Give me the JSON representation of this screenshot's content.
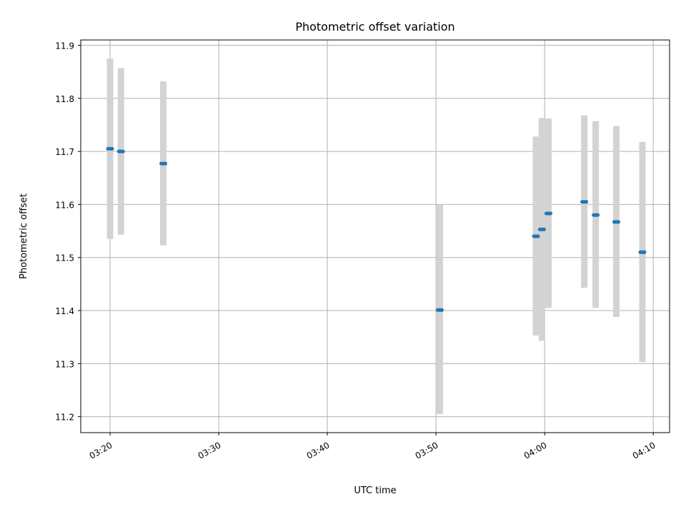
{
  "chart_data": {
    "type": "scatter",
    "title": "Photometric offset variation",
    "xlabel": "UTC time",
    "ylabel": "Photometric offset",
    "x_tick_labels": [
      "03:20",
      "03:30",
      "03:40",
      "03:50",
      "04:00",
      "04:10"
    ],
    "x_tick_values_min": [
      0,
      10,
      20,
      30,
      40,
      50
    ],
    "xlim_min": [
      -2.7,
      51.5
    ],
    "y_ticks": [
      11.2,
      11.3,
      11.4,
      11.5,
      11.6,
      11.7,
      11.8,
      11.9
    ],
    "ylim": [
      11.17,
      11.91
    ],
    "grid": true,
    "x_axis_time_origin": "03:20",
    "series": [
      {
        "marker_color": "#1f77b4",
        "errorbar_color": "#d3d3d3",
        "points": [
          {
            "t": 0.0,
            "y": 11.705,
            "lo": 11.535,
            "hi": 11.875
          },
          {
            "t": 1.0,
            "y": 11.7,
            "lo": 11.543,
            "hi": 11.857
          },
          {
            "t": 4.9,
            "y": 11.677,
            "lo": 11.523,
            "hi": 11.832
          },
          {
            "t": 30.35,
            "y": 11.401,
            "lo": 11.205,
            "hi": 11.6
          },
          {
            "t": 39.2,
            "y": 11.54,
            "lo": 11.353,
            "hi": 11.728
          },
          {
            "t": 39.75,
            "y": 11.553,
            "lo": 11.343,
            "hi": 11.763
          },
          {
            "t": 40.35,
            "y": 11.583,
            "lo": 11.405,
            "hi": 11.762
          },
          {
            "t": 43.65,
            "y": 11.605,
            "lo": 11.443,
            "hi": 11.768
          },
          {
            "t": 44.7,
            "y": 11.58,
            "lo": 11.405,
            "hi": 11.757
          },
          {
            "t": 46.6,
            "y": 11.567,
            "lo": 11.388,
            "hi": 11.748
          },
          {
            "t": 49.0,
            "y": 11.51,
            "lo": 11.303,
            "hi": 11.718
          }
        ]
      }
    ]
  }
}
